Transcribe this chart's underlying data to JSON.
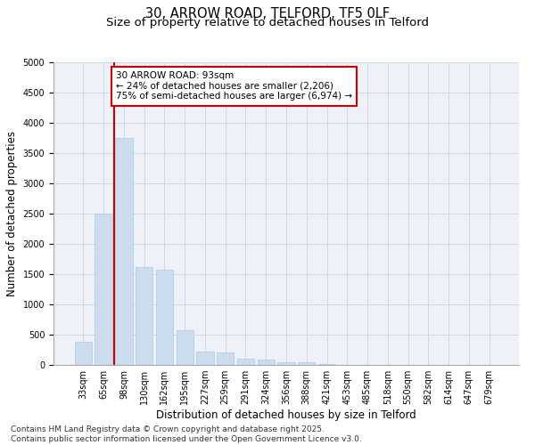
{
  "title_line1": "30, ARROW ROAD, TELFORD, TF5 0LF",
  "title_line2": "Size of property relative to detached houses in Telford",
  "xlabel": "Distribution of detached houses by size in Telford",
  "ylabel": "Number of detached properties",
  "categories": [
    "33sqm",
    "65sqm",
    "98sqm",
    "130sqm",
    "162sqm",
    "195sqm",
    "227sqm",
    "259sqm",
    "291sqm",
    "324sqm",
    "356sqm",
    "388sqm",
    "421sqm",
    "453sqm",
    "485sqm",
    "518sqm",
    "550sqm",
    "582sqm",
    "614sqm",
    "647sqm",
    "679sqm"
  ],
  "values": [
    380,
    2500,
    3750,
    1620,
    1580,
    580,
    220,
    210,
    110,
    90,
    50,
    50,
    10,
    5,
    3,
    2,
    1,
    1,
    0,
    0,
    0
  ],
  "bar_color": "#ccdcef",
  "bar_edge_color": "#aec8e0",
  "vline_color": "#cc0000",
  "annotation_text": "30 ARROW ROAD: 93sqm\n← 24% of detached houses are smaller (2,206)\n75% of semi-detached houses are larger (6,974) →",
  "annotation_box_color": "#cc0000",
  "ylim": [
    0,
    5000
  ],
  "yticks": [
    0,
    500,
    1000,
    1500,
    2000,
    2500,
    3000,
    3500,
    4000,
    4500,
    5000
  ],
  "grid_color": "#d0d8e8",
  "bg_color": "#eef2f8",
  "footer": "Contains HM Land Registry data © Crown copyright and database right 2025.\nContains public sector information licensed under the Open Government Licence v3.0.",
  "title_fontsize": 10.5,
  "subtitle_fontsize": 9.5,
  "axis_label_fontsize": 8.5,
  "tick_fontsize": 7,
  "annotation_fontsize": 7.5,
  "footer_fontsize": 6.5
}
